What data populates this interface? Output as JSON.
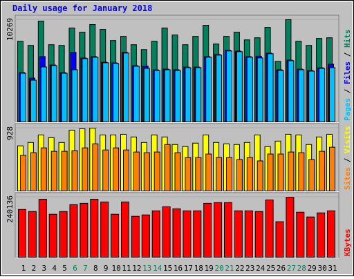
{
  "chart_data": [
    {
      "type": "bar",
      "title": "Daily usage for January 2018",
      "ylim": [
        0,
        10269
      ],
      "yticks": [
        10269
      ],
      "legend_separator": " / ",
      "series": [
        {
          "name": "Pages",
          "color": "#00C0FF",
          "values": [
            4890,
            4192,
            5519,
            5659,
            4890,
            5240,
            6357,
            6497,
            5938,
            5868,
            6916,
            5589,
            5379,
            5170,
            5240,
            5170,
            5449,
            5449,
            6497,
            6707,
            7126,
            7056,
            6497,
            6427,
            6846,
            5170,
            6148,
            5240,
            5100,
            5379,
            5449
          ]
        },
        {
          "name": "Files",
          "color": "#0000FF",
          "values": [
            4960,
            4400,
            6567,
            5720,
            4950,
            6986,
            6420,
            6560,
            6000,
            5930,
            6980,
            5650,
            5600,
            5230,
            5300,
            5240,
            5510,
            5510,
            6560,
            6770,
            7190,
            7120,
            6560,
            6600,
            6910,
            5240,
            6210,
            5300,
            5160,
            5440,
            5800
          ]
        },
        {
          "name": "Hits",
          "color": "#00805C",
          "values": [
            8104,
            7685,
            10130,
            7754,
            7685,
            9431,
            9012,
            9780,
            9291,
            8174,
            8593,
            7754,
            7265,
            8104,
            9431,
            8733,
            7754,
            8593,
            9711,
            7824,
            8593,
            9012,
            8243,
            8453,
            9501,
            6078,
            10269,
            8104,
            7685,
            8383,
            8453
          ]
        }
      ]
    },
    {
      "type": "bar",
      "ylim": [
        0,
        928
      ],
      "yticks": [
        928
      ],
      "legend_separator": " / ",
      "series": [
        {
          "name": "Sites",
          "color": "#FF8000",
          "values": [
            525,
            565,
            636,
            585,
            585,
            595,
            636,
            696,
            605,
            636,
            605,
            575,
            565,
            575,
            686,
            565,
            494,
            494,
            545,
            494,
            494,
            464,
            494,
            444,
            545,
            545,
            575,
            565,
            464,
            585,
            646
          ]
        },
        {
          "name": "Visits",
          "color": "#FFFF00",
          "values": [
            666,
            716,
            827,
            787,
            716,
            898,
            918,
            928,
            827,
            827,
            837,
            797,
            716,
            827,
            797,
            686,
            656,
            706,
            827,
            716,
            696,
            686,
            716,
            827,
            656,
            736,
            837,
            827,
            686,
            797,
            837
          ]
        }
      ]
    },
    {
      "type": "bar",
      "ylim": [
        0,
        240136
      ],
      "yticks": [
        240136
      ],
      "categories": [
        "1",
        "2",
        "3",
        "4",
        "5",
        "6",
        "7",
        "8",
        "9",
        "10",
        "11",
        "12",
        "13",
        "14",
        "15",
        "16",
        "17",
        "18",
        "19",
        "20",
        "21",
        "22",
        "23",
        "24",
        "25",
        "26",
        "27",
        "28",
        "29",
        "30",
        "31"
      ],
      "category_colors": [
        "#000000",
        "#000000",
        "#000000",
        "#000000",
        "#000000",
        "#00805C",
        "#00805C",
        "#000000",
        "#000000",
        "#000000",
        "#000000",
        "#000000",
        "#00805C",
        "#00805C",
        "#000000",
        "#000000",
        "#000000",
        "#000000",
        "#000000",
        "#00805C",
        "#00805C",
        "#000000",
        "#000000",
        "#000000",
        "#000000",
        "#000000",
        "#00805C",
        "#00805C",
        "#000000",
        "#000000",
        "#000000"
      ],
      "series": [
        {
          "name": "KBytes",
          "color": "#FF0000",
          "values": [
            191030,
            182843,
            231965,
            171927,
            182843,
            210133,
            215591,
            231965,
            221049,
            171927,
            221049,
            163740,
            169198,
            185572,
            201946,
            193759,
            185572,
            185572,
            215591,
            218320,
            218320,
            185572,
            185572,
            182843,
            229236,
            141908,
            240136,
            180114,
            161011,
            177385,
            185572
          ]
        }
      ]
    }
  ]
}
